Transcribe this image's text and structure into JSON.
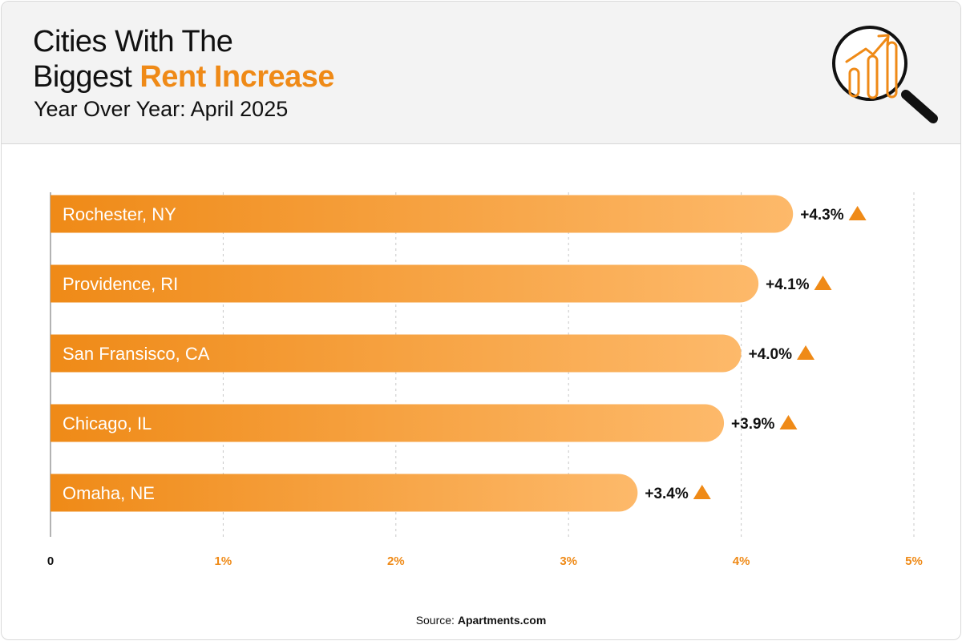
{
  "header": {
    "title_line1": "Cities With The",
    "title_line2_prefix": "Biggest ",
    "title_line2_accent": "Rent Increase",
    "subtitle": "Year Over Year: April 2025"
  },
  "footer": {
    "source_label": "Source:",
    "source_name": "Apartments.com"
  },
  "colors": {
    "accent": "#ef8a17",
    "bar_start": "#ef8a17",
    "bar_end": "#fdb96a",
    "grid": "#c8c8c8"
  },
  "icons": [
    "magnifier-chart-icon",
    "up-triangle-icon"
  ],
  "chart_data": {
    "type": "bar",
    "orientation": "horizontal",
    "title": "Cities With The Biggest Rent Increase",
    "subtitle": "Year Over Year: April 2025",
    "categories": [
      "Rochester, NY",
      "Providence, RI",
      "San Fransisco, CA",
      "Chicago, IL",
      "Omaha, NE"
    ],
    "values": [
      4.3,
      4.1,
      4.0,
      3.9,
      3.4
    ],
    "value_labels": [
      "+4.3%",
      "+4.1%",
      "+4.0%",
      "+3.9%",
      "+3.4%"
    ],
    "xlim": [
      0,
      5
    ],
    "ticks": [
      0,
      1,
      2,
      3,
      4,
      5
    ],
    "tick_labels": [
      "0",
      "1%",
      "2%",
      "3%",
      "4%",
      "5%"
    ],
    "xlabel": "",
    "ylabel": "",
    "grid": "vertical-dashed",
    "legend": "none"
  }
}
